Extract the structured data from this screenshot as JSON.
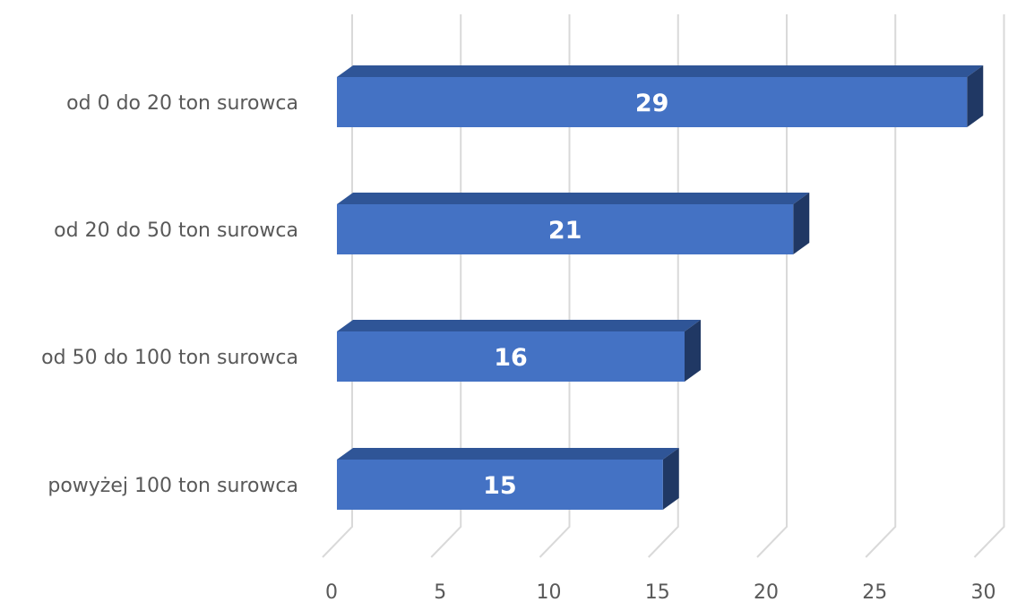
{
  "chart_data": {
    "type": "bar",
    "orientation": "horizontal",
    "style": "3d",
    "categories": [
      "od 0 do 20 ton surowca",
      "od 20 do 50 ton surowca",
      "od 50 do 100 ton surowca",
      "powyżej 100 ton surowca"
    ],
    "values": [
      29,
      21,
      16,
      15
    ],
    "data_labels": [
      "29",
      "21",
      "16",
      "15"
    ],
    "xlim": [
      0,
      30
    ],
    "x_ticks": [
      0,
      5,
      10,
      15,
      20,
      25,
      30
    ],
    "x_tick_labels": [
      "0",
      "5",
      "10",
      "15",
      "20",
      "25",
      "30"
    ],
    "grid": true,
    "legend": "none",
    "title": "",
    "xlabel": "",
    "ylabel": "",
    "colors": {
      "bar_front": "#4472c4",
      "bar_top": "#2f5597",
      "bar_side": "#203864",
      "grid": "#d9d9d9",
      "axis_text": "#595959",
      "data_label_text": "#ffffff"
    }
  }
}
